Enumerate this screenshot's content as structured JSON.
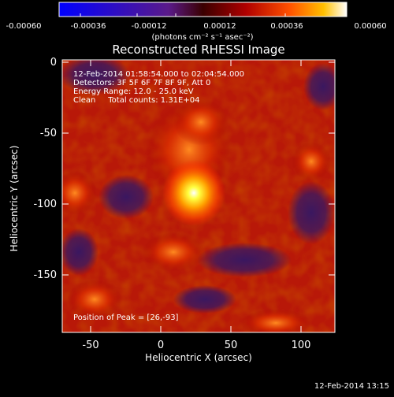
{
  "colorbar": {
    "ticks": [
      "-0.00060",
      "-0.00036",
      "-0.00012",
      "0.00012",
      "0.00036",
      "0.00060"
    ],
    "units": "(photons cm⁻² s⁻¹ asec⁻²)"
  },
  "plot": {
    "title": "Reconstructed RHESSI Image",
    "xlabel": "Heliocentric X (arcsec)",
    "ylabel": "Heliocentric Y (arcsec)",
    "x_ticks": [
      "-50",
      "0",
      "50",
      "100"
    ],
    "y_ticks": [
      "0",
      "-50",
      "-100",
      "-150"
    ],
    "xlim": [
      -72,
      122
    ],
    "ylim": [
      -190,
      2
    ]
  },
  "annotations": {
    "time_range": "12-Feb-2014 01:58:54.000 to 02:04:54.000",
    "detectors": "Detectors: 3F 5F 6F 7F 8F 9F, Att 0",
    "energy": "Energy Range: 12.0 - 25.0 keV",
    "clean": "Clean     Total counts: 1.31E+04",
    "peak": "Position of Peak = [26,-93]"
  },
  "footer": {
    "timestamp": "12-Feb-2014 13:15"
  }
}
